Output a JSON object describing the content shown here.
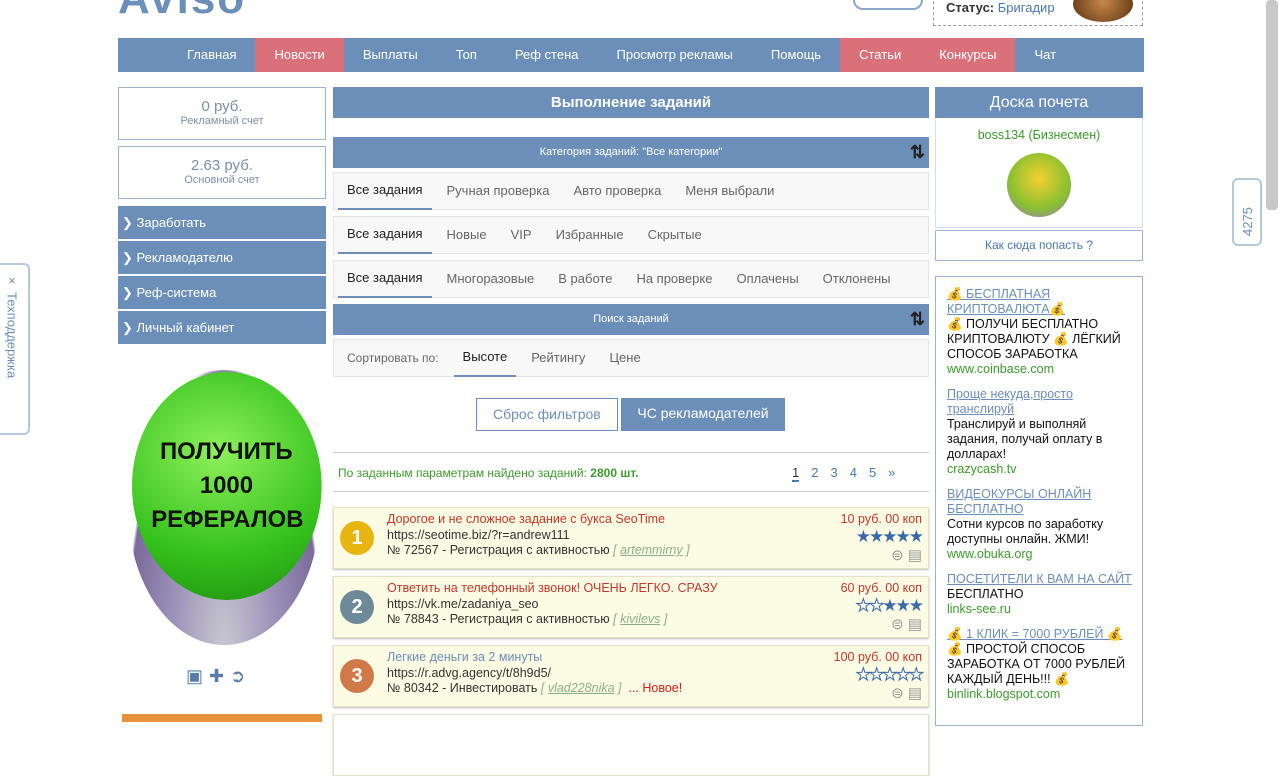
{
  "header": {
    "logo": "Aviso",
    "status_label": "Статус:",
    "status_value": "Бригадир"
  },
  "nav": [
    {
      "label": "Главная",
      "red": false
    },
    {
      "label": "Новости",
      "red": true
    },
    {
      "label": "Выплаты",
      "red": false
    },
    {
      "label": "Топ",
      "red": false
    },
    {
      "label": "Реф стена",
      "red": false
    },
    {
      "label": "Просмотр рекламы",
      "red": false
    },
    {
      "label": "Помощь",
      "red": false
    },
    {
      "label": "Статьи",
      "red": true
    },
    {
      "label": "Конкурсы",
      "red": true
    },
    {
      "label": "Чат",
      "red": false
    }
  ],
  "left": {
    "ad_account": {
      "amount": "0 руб.",
      "label": "Рекламный счет"
    },
    "main_account": {
      "amount": "2.63 руб.",
      "label": "Основной счет"
    },
    "menu": [
      "Заработать",
      "Рекламодателю",
      "Реф-система",
      "Личный кабинет"
    ],
    "banner": [
      "ПОЛУЧИТЬ",
      "1000",
      "РЕФЕРАЛОВ"
    ]
  },
  "main": {
    "title": "Выполнение заданий",
    "category_bar": "Категория заданий: \"Все категории\"",
    "tabs1": [
      "Все задания",
      "Ручная проверка",
      "Авто проверка",
      "Меня выбрали"
    ],
    "tabs2": [
      "Все задания",
      "Новые",
      "VIP",
      "Избранные",
      "Скрытые"
    ],
    "tabs3": [
      "Все задания",
      "Многоразовые",
      "В работе",
      "На проверке",
      "Оплачены",
      "Отклонены"
    ],
    "search_bar": "Поиск заданий",
    "sort_label": "Сортировать по:",
    "sort_options": [
      "Высоте",
      "Рейтингу",
      "Цене"
    ],
    "reset_button": "Сброс фильтров",
    "blacklist_button": "ЧС рекламодателей",
    "found_text": "По заданным параметрам найдено заданий:",
    "found_count": "2800 шт.",
    "pages": [
      "1",
      "2",
      "3",
      "4",
      "5",
      "»"
    ],
    "tasks": [
      {
        "rank": "1",
        "title": "Дорогое и не сложное задание с букса SeoTime",
        "title_color": "#c0392b",
        "url": "https://seotime.biz/?r=andrew111",
        "info": "№ 72567 - Регистрация с активностью",
        "user": "artemmirny",
        "new": "",
        "price": "10 руб. 00 коп",
        "rating": 5,
        "medal_color": "#e8b410"
      },
      {
        "rank": "2",
        "title": "Ответить на телефонный звонок! ОЧЕНЬ ЛЕГКО. СРАЗУ",
        "title_color": "#c0392b",
        "url": "https://vk.me/zadaniya_seo",
        "info": "№ 78843 - Регистрация с активностью",
        "user": "kivilevs",
        "new": "",
        "price": "60 руб. 00 коп",
        "rating": 3,
        "medal_color": "#6e8a98"
      },
      {
        "rank": "3",
        "title": "Легкие деньги за 2 минуты",
        "title_color": "#6b8fb8",
        "url": "https://r.advg.agency/t/8h9d5/",
        "info": "№ 80342 - Инвестировать",
        "user": "vlad228nika",
        "new": "... Новое!",
        "price": "100 руб. 00 коп",
        "rating": 0,
        "medal_color": "#d2794a"
      }
    ]
  },
  "right": {
    "title": "Доска почета",
    "leader": "boss134 (Бизнесмен)",
    "how_link": "Как сюда попасть ?",
    "ads": [
      {
        "title": "💰 БЕСПЛАТНАЯ КРИПТОВАЛЮТА💰",
        "desc": "💰 ПОЛУЧИ БЕСПЛАТНО КРИПТОВАЛЮТУ 💰 ЛЁГКИЙ СПОСОБ ЗАРАБОТКА",
        "url": "www.coinbase.com"
      },
      {
        "title": "Проще некуда,просто транслируй",
        "desc": "Транслируй и выполняй задания, получай оплату в долларах!",
        "url": "crazycash.tv"
      },
      {
        "title": "ВИДЕОКУРСЫ ОНЛАЙН БЕСПЛАТНО",
        "desc": "Сотни курсов по заработку доступны онлайн. ЖМИ!",
        "url": "www.obuka.org"
      },
      {
        "title": "ПОСЕТИТЕЛИ К ВАМ НА САЙТ",
        "desc": "БЕСПЛАТНО",
        "url": "links-see.ru"
      },
      {
        "title": "💰 1 КЛИК = 7000 РУБЛЕЙ 💰",
        "desc": "💰 ПРОСТОЙ СПОСОБ ЗАРАБОТКА ОТ 7000 РУБЛЕЙ КАЖДЫЙ ДЕНЬ!!! 💰",
        "url": "binlink.blogspot.com"
      }
    ]
  },
  "support_tab": "Техподдержка",
  "support_close": "×",
  "online_tab": "4275"
}
